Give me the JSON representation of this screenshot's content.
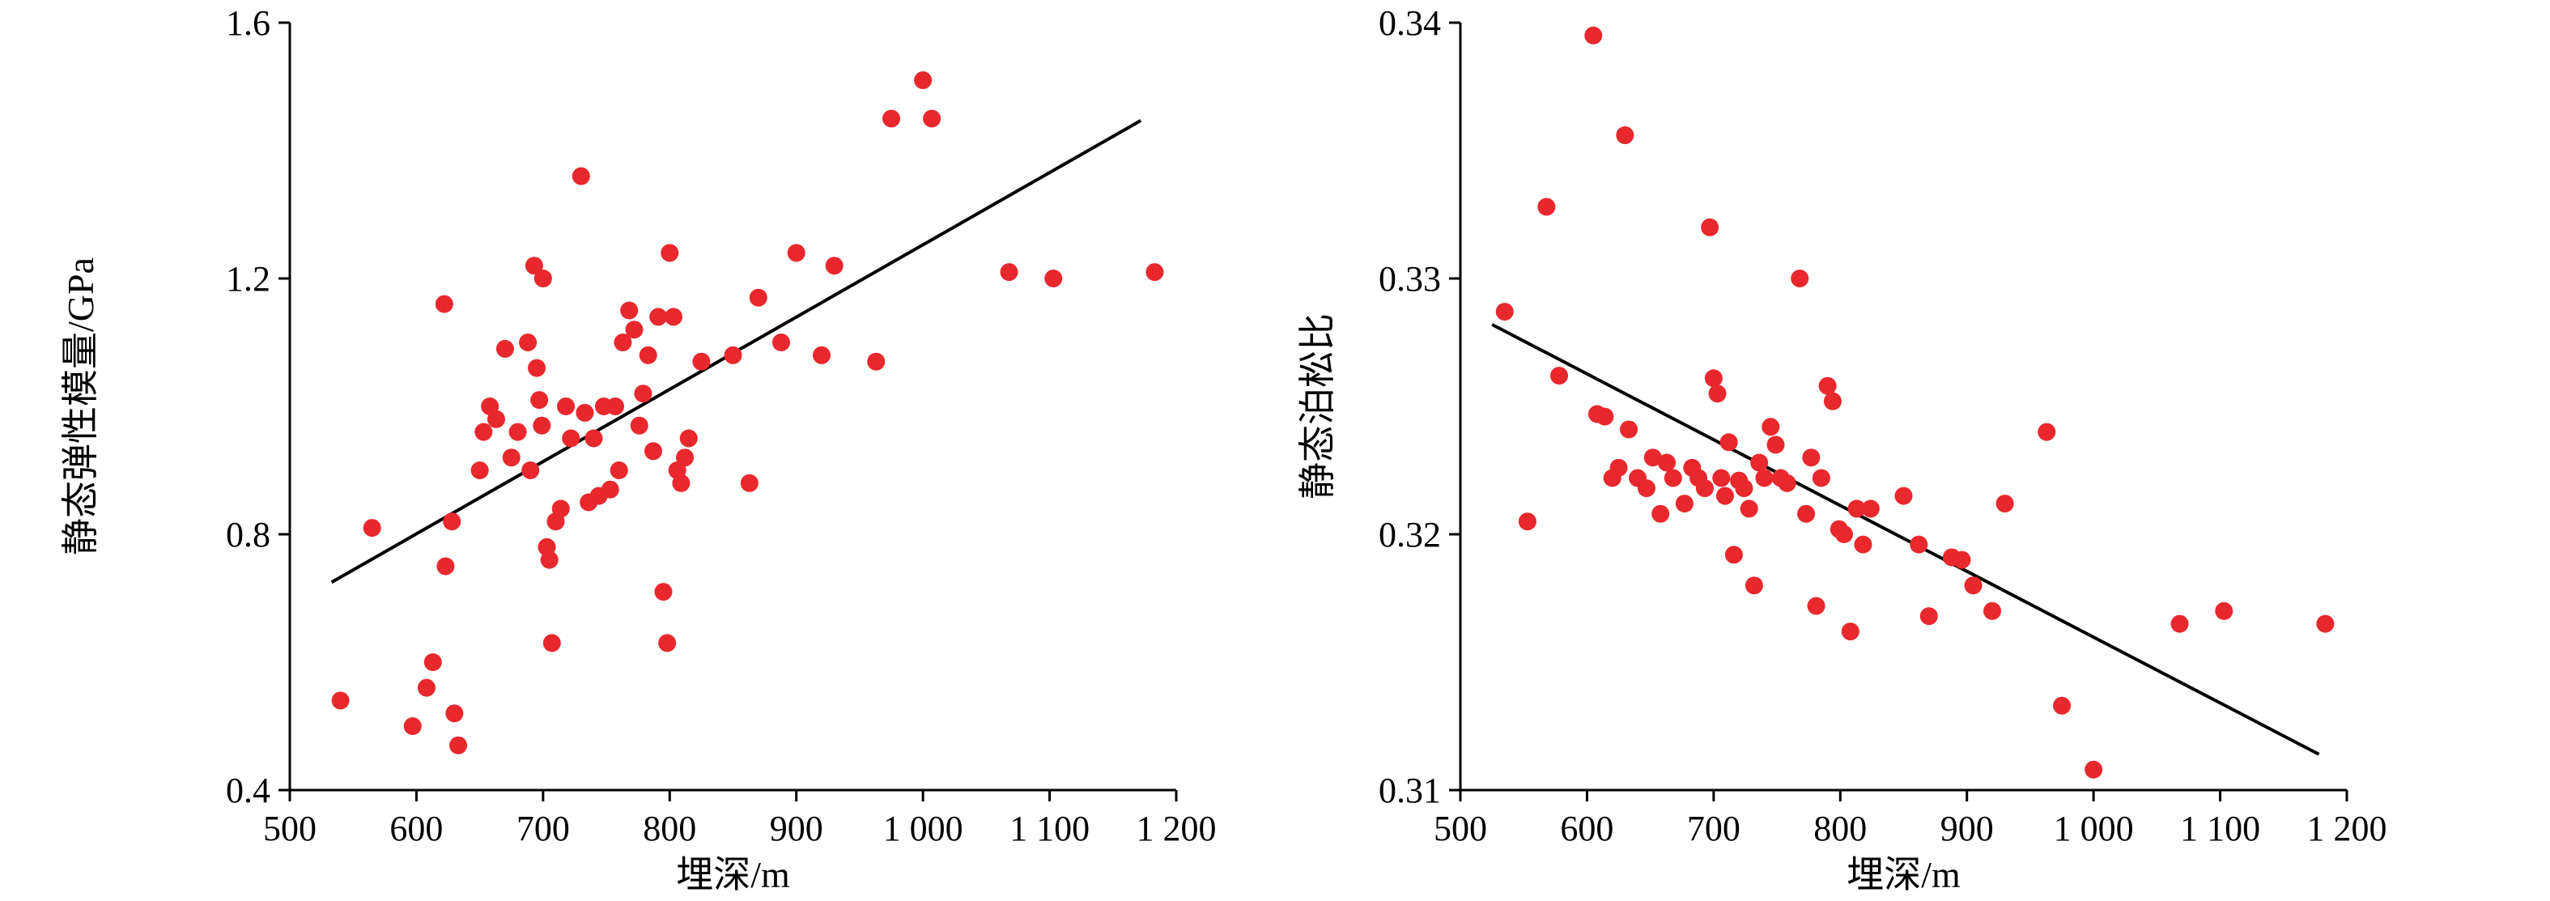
{
  "figure": {
    "background": "#ffffff",
    "description": "Two scatter plots of static rock mechanical properties versus burial depth with linear trend lines"
  },
  "chart_data": [
    {
      "type": "scatter",
      "title": "",
      "xlabel": "埋深/m",
      "ylabel": "静态弹性模量/GPa",
      "xlim": [
        500,
        1200
      ],
      "ylim": [
        0.4,
        1.6
      ],
      "xticks": [
        500,
        600,
        700,
        800,
        900,
        1000,
        1100,
        1200
      ],
      "xtick_labels": [
        "500",
        "600",
        "700",
        "800",
        "900",
        "1 000",
        "1 100",
        "1 200"
      ],
      "yticks": [
        0.4,
        0.8,
        1.2,
        1.6
      ],
      "ytick_labels": [
        "0.4",
        "0.8",
        "1.2",
        "1.6"
      ],
      "grid": false,
      "legend": "none",
      "marker_color": "#e8282d",
      "axis_color": "#000000",
      "text_color": "#000000",
      "trend_line": {
        "x1": 533,
        "y1": 0.725,
        "x2": 1172,
        "y2": 1.447,
        "color": "#000000"
      },
      "points": [
        [
          540,
          0.54
        ],
        [
          565,
          0.81
        ],
        [
          597,
          0.5
        ],
        [
          608,
          0.56
        ],
        [
          613,
          0.6
        ],
        [
          622,
          1.16
        ],
        [
          623,
          0.75
        ],
        [
          628,
          0.82
        ],
        [
          630,
          0.52
        ],
        [
          633,
          0.47
        ],
        [
          650,
          0.9
        ],
        [
          653,
          0.96
        ],
        [
          658,
          1.0
        ],
        [
          663,
          0.98
        ],
        [
          670,
          1.09
        ],
        [
          675,
          0.92
        ],
        [
          680,
          0.96
        ],
        [
          688,
          1.1
        ],
        [
          690,
          0.9
        ],
        [
          693,
          1.22
        ],
        [
          695,
          1.06
        ],
        [
          697,
          1.01
        ],
        [
          699,
          0.97
        ],
        [
          700,
          1.2
        ],
        [
          703,
          0.78
        ],
        [
          705,
          0.76
        ],
        [
          707,
          0.63
        ],
        [
          710,
          0.82
        ],
        [
          714,
          0.84
        ],
        [
          718,
          1.0
        ],
        [
          722,
          0.95
        ],
        [
          730,
          1.36
        ],
        [
          733,
          0.99
        ],
        [
          736,
          0.85
        ],
        [
          740,
          0.95
        ],
        [
          744,
          0.86
        ],
        [
          748,
          1.0
        ],
        [
          753,
          0.87
        ],
        [
          757,
          1.0
        ],
        [
          760,
          0.9
        ],
        [
          763,
          1.1
        ],
        [
          768,
          1.15
        ],
        [
          772,
          1.12
        ],
        [
          776,
          0.97
        ],
        [
          779,
          1.02
        ],
        [
          783,
          1.08
        ],
        [
          787,
          0.93
        ],
        [
          791,
          1.14
        ],
        [
          795,
          0.71
        ],
        [
          798,
          0.63
        ],
        [
          800,
          1.24
        ],
        [
          803,
          1.14
        ],
        [
          806,
          0.9
        ],
        [
          809,
          0.88
        ],
        [
          812,
          0.92
        ],
        [
          815,
          0.95
        ],
        [
          825,
          1.07
        ],
        [
          850,
          1.08
        ],
        [
          863,
          0.88
        ],
        [
          870,
          1.17
        ],
        [
          888,
          1.1
        ],
        [
          900,
          1.24
        ],
        [
          920,
          1.08
        ],
        [
          930,
          1.22
        ],
        [
          963,
          1.07
        ],
        [
          975,
          1.45
        ],
        [
          1000,
          1.51
        ],
        [
          1007,
          1.45
        ],
        [
          1068,
          1.21
        ],
        [
          1103,
          1.2
        ],
        [
          1183,
          1.21
        ]
      ]
    },
    {
      "type": "scatter",
      "title": "",
      "xlabel": "埋深/m",
      "ylabel": "静态泊松比",
      "xlim": [
        500,
        1200
      ],
      "ylim": [
        0.31,
        0.34
      ],
      "xticks": [
        500,
        600,
        700,
        800,
        900,
        1000,
        1100,
        1200
      ],
      "xtick_labels": [
        "500",
        "600",
        "700",
        "800",
        "900",
        "1 000",
        "1 100",
        "1 200"
      ],
      "yticks": [
        0.31,
        0.32,
        0.33,
        0.34
      ],
      "ytick_labels": [
        "0.31",
        "0.32",
        "0.33",
        "0.34"
      ],
      "grid": false,
      "legend": "none",
      "marker_color": "#e8282d",
      "axis_color": "#000000",
      "text_color": "#000000",
      "trend_line": {
        "x1": 525,
        "y1": 0.3282,
        "x2": 1178,
        "y2": 0.3114,
        "color": "#000000"
      },
      "points": [
        [
          535,
          0.3287
        ],
        [
          553,
          0.3205
        ],
        [
          568,
          0.3328
        ],
        [
          578,
          0.3262
        ],
        [
          605,
          0.3395
        ],
        [
          608,
          0.3247
        ],
        [
          614,
          0.3246
        ],
        [
          620,
          0.3222
        ],
        [
          625,
          0.3226
        ],
        [
          630,
          0.3356
        ],
        [
          633,
          0.3241
        ],
        [
          640,
          0.3222
        ],
        [
          647,
          0.3218
        ],
        [
          652,
          0.323
        ],
        [
          658,
          0.3208
        ],
        [
          663,
          0.3228
        ],
        [
          668,
          0.3222
        ],
        [
          677,
          0.3212
        ],
        [
          683,
          0.3226
        ],
        [
          688,
          0.3222
        ],
        [
          693,
          0.3218
        ],
        [
          697,
          0.332
        ],
        [
          700,
          0.3261
        ],
        [
          703,
          0.3255
        ],
        [
          706,
          0.3222
        ],
        [
          709,
          0.3215
        ],
        [
          712,
          0.3236
        ],
        [
          716,
          0.3192
        ],
        [
          720,
          0.3221
        ],
        [
          724,
          0.3218
        ],
        [
          728,
          0.321
        ],
        [
          732,
          0.318
        ],
        [
          736,
          0.3228
        ],
        [
          740,
          0.3222
        ],
        [
          745,
          0.3242
        ],
        [
          749,
          0.3235
        ],
        [
          753,
          0.3222
        ],
        [
          758,
          0.322
        ],
        [
          768,
          0.33
        ],
        [
          773,
          0.3208
        ],
        [
          777,
          0.323
        ],
        [
          781,
          0.3172
        ],
        [
          785,
          0.3222
        ],
        [
          790,
          0.3258
        ],
        [
          794,
          0.3252
        ],
        [
          799,
          0.3202
        ],
        [
          803,
          0.32
        ],
        [
          808,
          0.3162
        ],
        [
          813,
          0.321
        ],
        [
          818,
          0.3196
        ],
        [
          824,
          0.321
        ],
        [
          850,
          0.3215
        ],
        [
          862,
          0.3196
        ],
        [
          870,
          0.3168
        ],
        [
          888,
          0.3191
        ],
        [
          896,
          0.319
        ],
        [
          905,
          0.318
        ],
        [
          920,
          0.317
        ],
        [
          930,
          0.3212
        ],
        [
          963,
          0.324
        ],
        [
          975,
          0.3133
        ],
        [
          1000,
          0.3108
        ],
        [
          1068,
          0.3165
        ],
        [
          1103,
          0.317
        ],
        [
          1183,
          0.3165
        ]
      ]
    }
  ]
}
